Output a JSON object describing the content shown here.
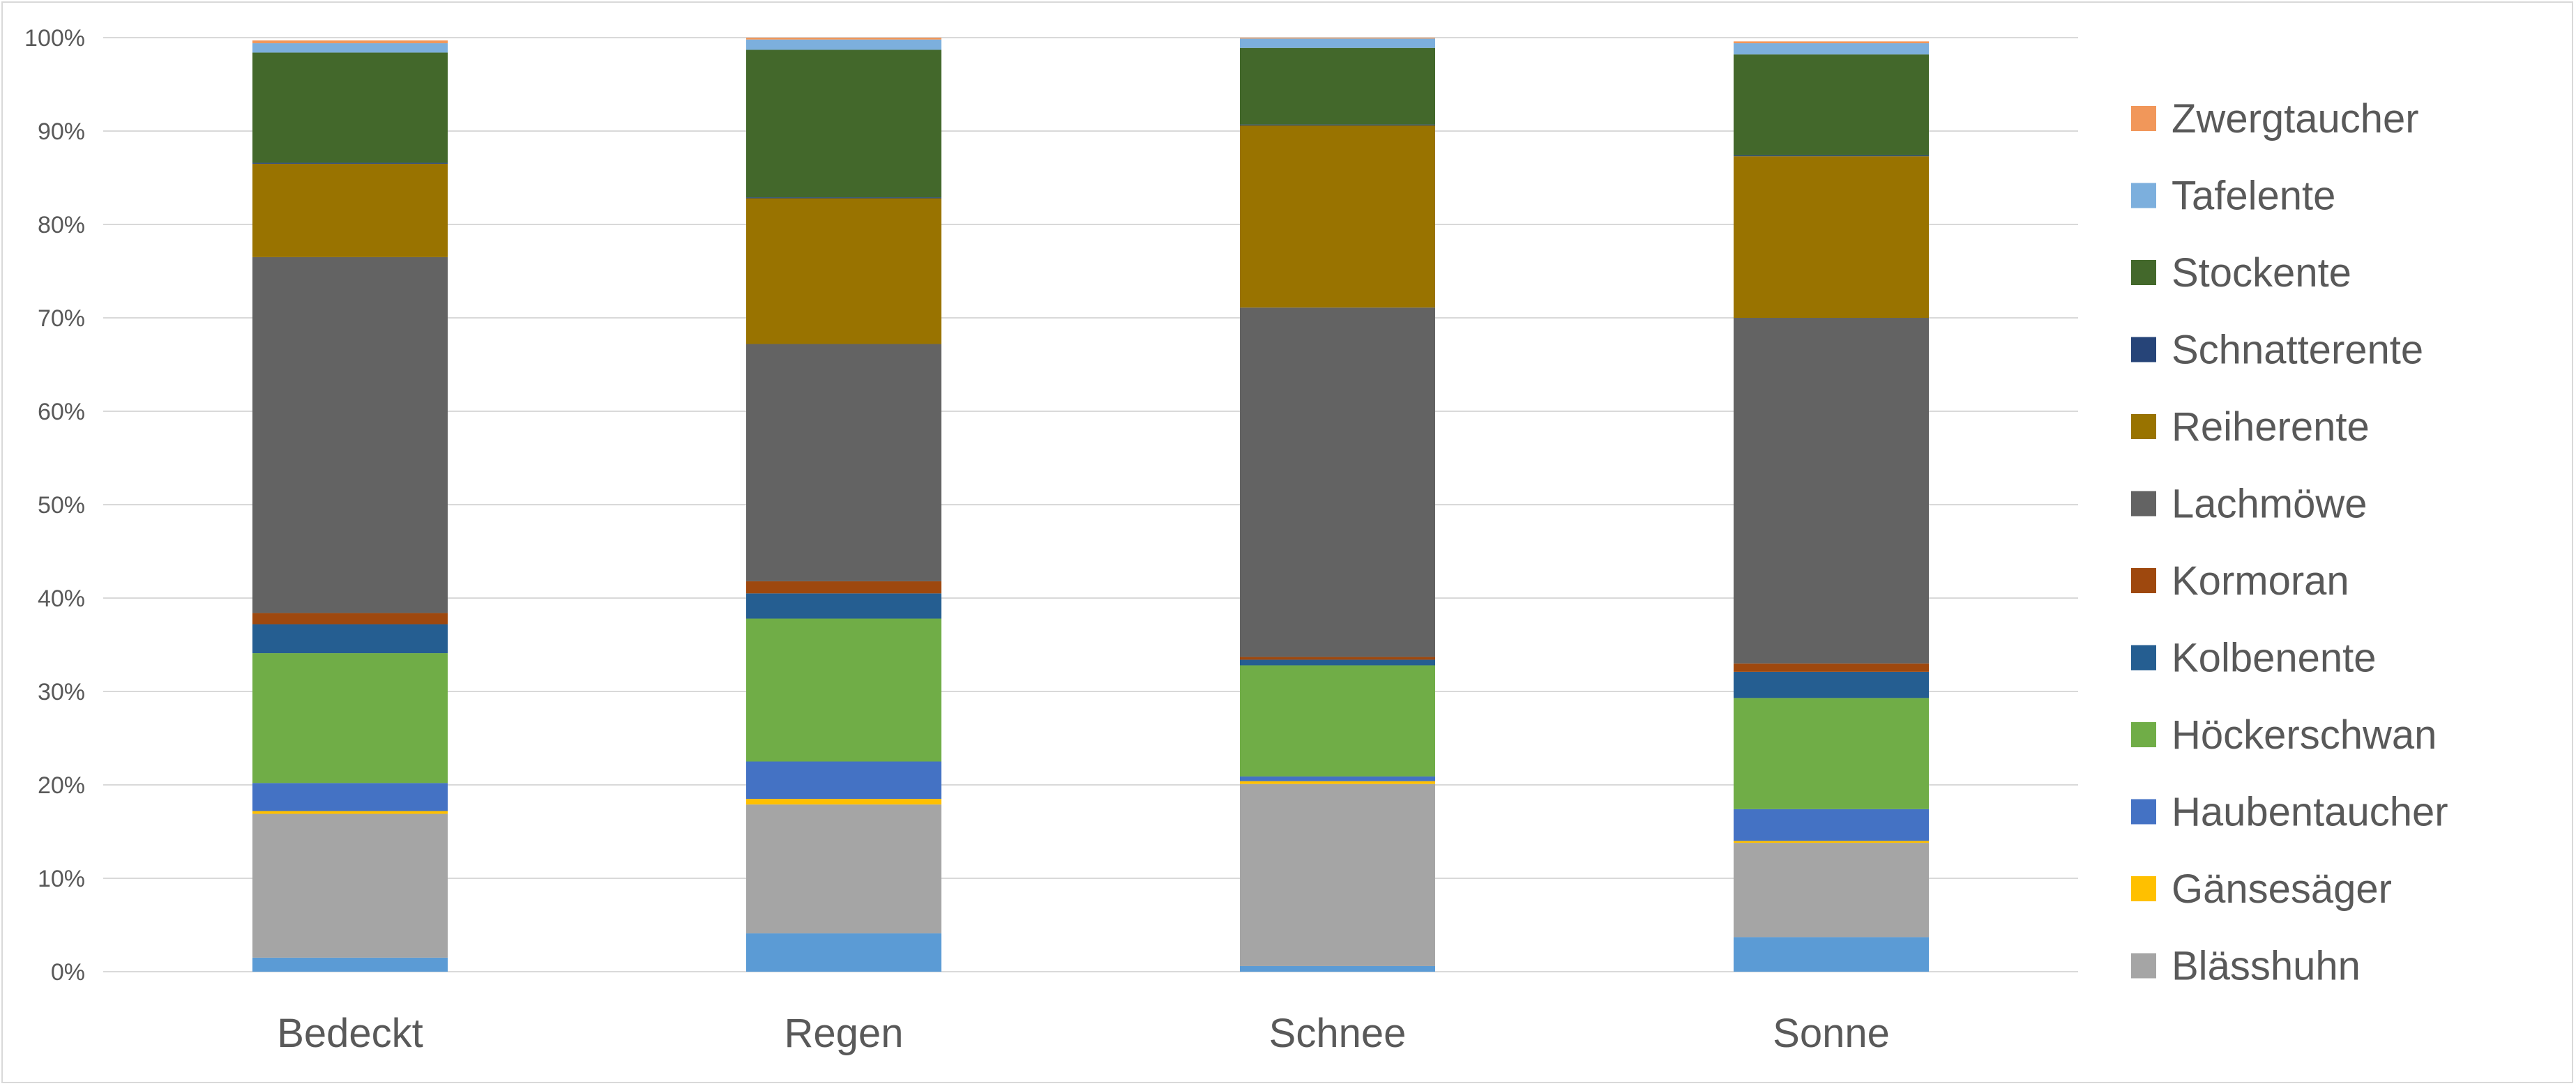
{
  "chart_data": {
    "type": "bar",
    "stacked": true,
    "percent_stacked": true,
    "categories": [
      "Bedeckt",
      "Regen",
      "Schnee",
      "Sonne"
    ],
    "ylim": [
      0,
      100
    ],
    "yticks": [
      "0%",
      "10%",
      "20%",
      "30%",
      "40%",
      "50%",
      "60%",
      "70%",
      "80%",
      "90%",
      "100%"
    ],
    "grid": true,
    "legend_position": "right",
    "series": [
      {
        "name": "Blässhuhn",
        "color": "#a5a5a5",
        "values": [
          15.4,
          13.8,
          19.5,
          10.1
        ]
      },
      {
        "name": "Gänsesäger",
        "color": "#ffc000",
        "values": [
          0.3,
          0.6,
          0.3,
          0.2
        ]
      },
      {
        "name": "Haubentaucher",
        "color": "#4472c4",
        "values": [
          3.0,
          4.0,
          0.5,
          3.4
        ]
      },
      {
        "name": "Höckerschwan",
        "color": "#70ad47",
        "values": [
          13.9,
          15.3,
          11.9,
          11.9
        ]
      },
      {
        "name": "Kolbenente",
        "color": "#255e91",
        "values": [
          3.1,
          2.7,
          0.6,
          2.8
        ]
      },
      {
        "name": "Kormoran",
        "color": "#9e480e",
        "values": [
          1.2,
          1.3,
          0.3,
          0.9
        ]
      },
      {
        "name": "Lachmöwe",
        "color": "#636363",
        "values": [
          38.1,
          25.4,
          37.4,
          37.0
        ]
      },
      {
        "name": "Reiherente",
        "color": "#997300",
        "values": [
          10.0,
          15.6,
          19.5,
          17.3
        ]
      },
      {
        "name": "Schnatterente",
        "color": "#264478",
        "values": [
          0.1,
          0.1,
          0.1,
          0.1
        ]
      },
      {
        "name": "Stockente",
        "color": "#43682b",
        "values": [
          11.8,
          15.8,
          8.2,
          10.8
        ]
      },
      {
        "name": "Tafelente",
        "color": "#7cafdd",
        "values": [
          1.0,
          1.1,
          1.0,
          1.2
        ]
      },
      {
        "name": "Zwergtaucher",
        "color": "#f1975a",
        "values": [
          0.3,
          0.2,
          0.1,
          0.2
        ]
      }
    ],
    "base_series": {
      "color": "#5b9bd5",
      "values": [
        1.5,
        4.1,
        0.6,
        3.7
      ]
    },
    "legend_order": [
      "Zwergtaucher",
      "Tafelente",
      "Stockente",
      "Schnatterente",
      "Reiherente",
      "Lachmöwe",
      "Kormoran",
      "Kolbenente",
      "Höckerschwan",
      "Haubentaucher",
      "Gänsesäger",
      "Blässhuhn"
    ]
  }
}
